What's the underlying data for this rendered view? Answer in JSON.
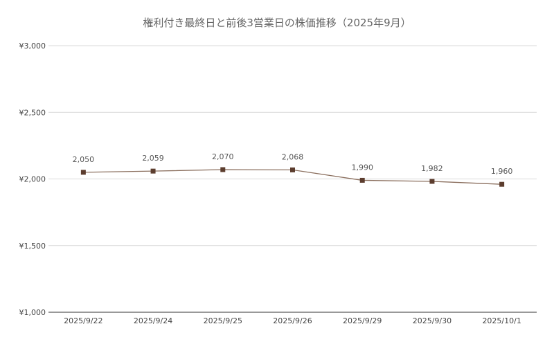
{
  "chart_data": {
    "type": "line",
    "title": "権利付き最終日と前後3営業日の株価推移（2025年9月）",
    "xlabel": "",
    "ylabel": "",
    "categories": [
      "2025/9/22",
      "2025/9/24",
      "2025/9/25",
      "2025/9/26",
      "2025/9/29",
      "2025/9/30",
      "2025/10/1"
    ],
    "series": [
      {
        "values": [
          2050,
          2059,
          2070,
          2068,
          1990,
          1982,
          1960
        ],
        "data_labels": [
          "2,050",
          "2,059",
          "2,070",
          "2,068",
          "1,990",
          "1,982",
          "1,960"
        ]
      }
    ],
    "ylim": [
      1000,
      3000
    ],
    "yticks": [
      1000,
      1500,
      2000,
      2500,
      3000
    ],
    "ytick_labels": [
      "¥1,000",
      "¥1,500",
      "¥2,000",
      "¥2,500",
      "¥3,000"
    ],
    "grid": true,
    "legend": "none",
    "colors": {
      "line": "#8b6f5e",
      "marker": "#5c3d2e",
      "grid": "#d9d9d9",
      "axis_text": "#444444",
      "label_text": "#555555",
      "title_text": "#666666"
    }
  }
}
